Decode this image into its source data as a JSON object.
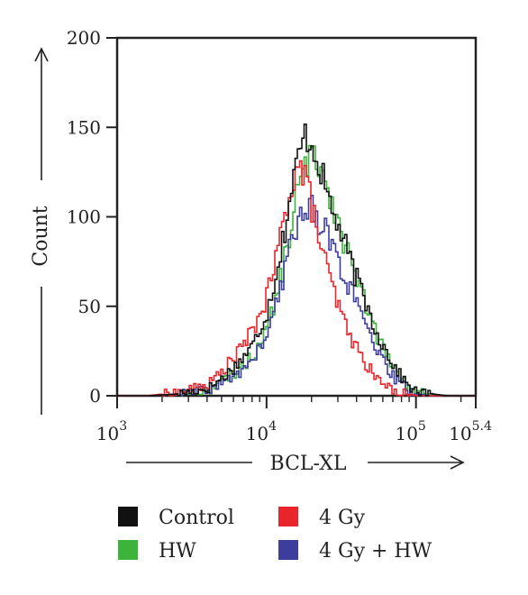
{
  "chart_data": {
    "type": "line",
    "title": "",
    "xlabel": "BCL-XL",
    "ylabel": "Count",
    "x_scale": "log10",
    "xlim": [
      1000,
      251189
    ],
    "ylim": [
      0,
      200
    ],
    "y_ticks": [
      0,
      50,
      100,
      150,
      200
    ],
    "x_tick_labels": [
      {
        "value": 1000,
        "base": "10",
        "exp": "3"
      },
      {
        "value": 10000,
        "base": "10",
        "exp": "4"
      },
      {
        "value": 100000,
        "base": "10",
        "exp": "5"
      },
      {
        "value": 251189,
        "base": "10",
        "exp": "5.4"
      }
    ],
    "grid": false,
    "legend_position": "bottom",
    "series": [
      {
        "name": "Control",
        "color": "#111111",
        "x": [
          1000,
          1585,
          2512,
          3981,
          5012,
          6310,
          7943,
          10000,
          11220,
          12589,
          14125,
          15849,
          17783,
          19953,
          22387,
          25119,
          28184,
          31623,
          35481,
          39811,
          44668,
          50119,
          56234,
          63096,
          70795,
          79433,
          89125,
          100000,
          125893,
          158489,
          251189
        ],
        "y": [
          0,
          0,
          1,
          4,
          10,
          18,
          28,
          48,
          66,
          86,
          110,
          132,
          146,
          140,
          128,
          112,
          100,
          88,
          76,
          64,
          54,
          42,
          32,
          24,
          16,
          10,
          5,
          2,
          1,
          0,
          0
        ]
      },
      {
        "name": "4 Gy",
        "color": "#e8252a",
        "x": [
          1000,
          1585,
          2512,
          3981,
          5012,
          6310,
          7943,
          10000,
          11220,
          12589,
          14125,
          15849,
          17783,
          19953,
          22387,
          25119,
          28184,
          31623,
          35481,
          39811,
          44668,
          50119,
          56234,
          63096,
          70795,
          79433,
          89125,
          100000,
          125893,
          158489,
          251189
        ],
        "y": [
          0,
          0,
          2,
          6,
          14,
          24,
          36,
          56,
          74,
          94,
          116,
          128,
          124,
          104,
          86,
          70,
          56,
          44,
          34,
          26,
          19,
          13,
          8,
          5,
          3,
          2,
          1,
          0,
          0,
          0,
          0
        ]
      },
      {
        "name": "HW",
        "color": "#3cb43c",
        "x": [
          1000,
          1585,
          2512,
          3981,
          5012,
          6310,
          7943,
          10000,
          11220,
          12589,
          14125,
          15849,
          17783,
          19953,
          22387,
          25119,
          28184,
          31623,
          35481,
          39811,
          44668,
          50119,
          56234,
          63096,
          70795,
          79433,
          89125,
          100000,
          125893,
          158489,
          251189
        ],
        "y": [
          0,
          0,
          1,
          3,
          8,
          14,
          22,
          38,
          52,
          70,
          92,
          114,
          128,
          134,
          130,
          118,
          104,
          90,
          76,
          64,
          52,
          40,
          30,
          22,
          15,
          9,
          5,
          2,
          1,
          0,
          0
        ]
      },
      {
        "name": "4 Gy + HW",
        "color": "#3d3d9e",
        "x": [
          1000,
          1585,
          2512,
          3981,
          5012,
          6310,
          7943,
          10000,
          11220,
          12589,
          14125,
          15849,
          17783,
          19953,
          22387,
          25119,
          28184,
          31623,
          35481,
          39811,
          44668,
          50119,
          56234,
          63096,
          70795,
          79433,
          89125,
          100000,
          125893,
          158489,
          251189
        ],
        "y": [
          0,
          0,
          1,
          3,
          7,
          12,
          20,
          34,
          48,
          64,
          84,
          98,
          106,
          104,
          98,
          90,
          80,
          70,
          60,
          50,
          40,
          30,
          22,
          15,
          10,
          6,
          3,
          1,
          0,
          0,
          0
        ]
      }
    ]
  }
}
